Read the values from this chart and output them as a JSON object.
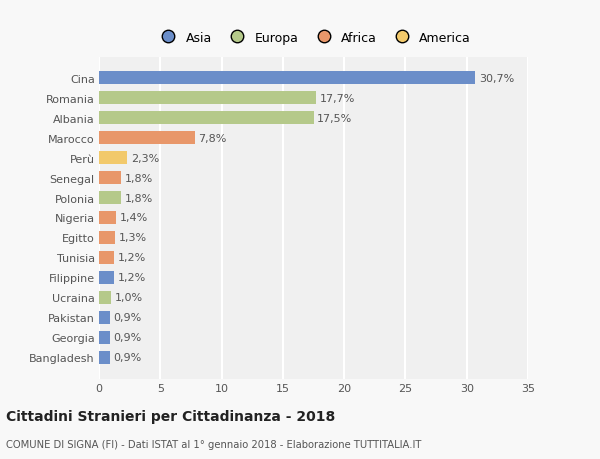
{
  "categories": [
    "Bangladesh",
    "Georgia",
    "Pakistan",
    "Ucraina",
    "Filippine",
    "Tunisia",
    "Egitto",
    "Nigeria",
    "Polonia",
    "Senegal",
    "Perù",
    "Marocco",
    "Albania",
    "Romania",
    "Cina"
  ],
  "values": [
    0.9,
    0.9,
    0.9,
    1.0,
    1.2,
    1.2,
    1.3,
    1.4,
    1.8,
    1.8,
    2.3,
    7.8,
    17.5,
    17.7,
    30.7
  ],
  "labels": [
    "0,9%",
    "0,9%",
    "0,9%",
    "1,0%",
    "1,2%",
    "1,2%",
    "1,3%",
    "1,4%",
    "1,8%",
    "1,8%",
    "2,3%",
    "7,8%",
    "17,5%",
    "17,7%",
    "30,7%"
  ],
  "colors": [
    "#6b8ec9",
    "#6b8ec9",
    "#6b8ec9",
    "#b5c98a",
    "#6b8ec9",
    "#e8976a",
    "#e8976a",
    "#e8976a",
    "#b5c98a",
    "#e8976a",
    "#f2c96b",
    "#e8976a",
    "#b5c98a",
    "#b5c98a",
    "#6b8ec9"
  ],
  "legend_labels": [
    "Asia",
    "Europa",
    "Africa",
    "America"
  ],
  "legend_colors": [
    "#6b8ec9",
    "#b5c98a",
    "#e8976a",
    "#f2c96b"
  ],
  "title": "Cittadini Stranieri per Cittadinanza - 2018",
  "subtitle": "COMUNE DI SIGNA (FI) - Dati ISTAT al 1° gennaio 2018 - Elaborazione TUTTITALIA.IT",
  "xlim": [
    0,
    35
  ],
  "xticks": [
    0,
    5,
    10,
    15,
    20,
    25,
    30,
    35
  ],
  "bg_color": "#f8f8f8",
  "plot_bg_color": "#f0f0f0",
  "grid_color": "#ffffff",
  "bar_height": 0.65,
  "label_fontsize": 8,
  "tick_fontsize": 8
}
